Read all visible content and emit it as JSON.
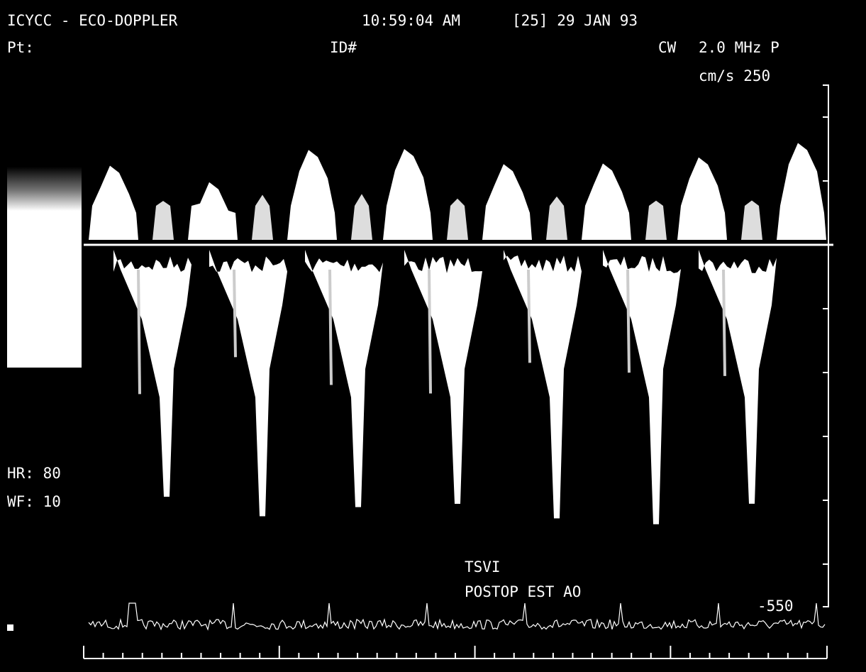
{
  "header": {
    "title": "ICYCC - ECO-DOPPLER",
    "time": "10:59:04 AM",
    "date": "[25] 29 JAN 93"
  },
  "patient": {
    "label": "Pt:",
    "id_label": "ID#"
  },
  "probe": {
    "mode": "CW",
    "frequency": "2.0 MHz P"
  },
  "scale": {
    "top": "cm/s 250",
    "bottom": "-550"
  },
  "vitals": {
    "heart_rate": "HR: 80",
    "wall_filter": "WF: 10"
  },
  "annotation": {
    "line1": "TSVI",
    "line2": "POSTOP EST AO"
  }
}
